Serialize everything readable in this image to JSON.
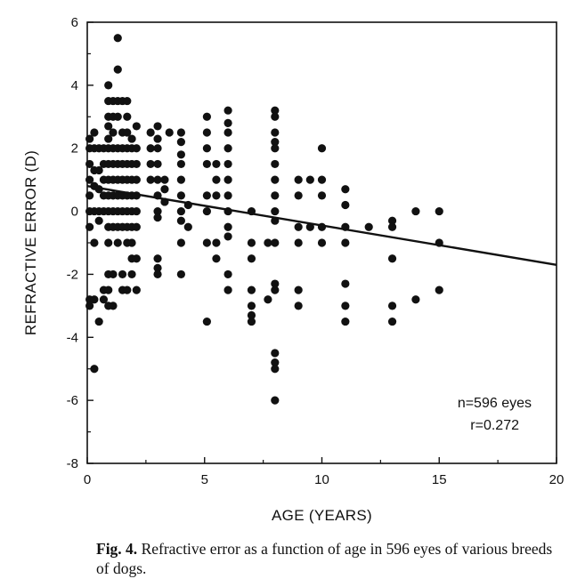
{
  "chart_data": {
    "type": "scatter",
    "xlabel": "AGE (YEARS)",
    "ylabel": "REFRACTIVE ERROR (D)",
    "xlim": [
      0,
      20
    ],
    "ylim": [
      -8,
      6
    ],
    "xticks": [
      0,
      5,
      10,
      15,
      20
    ],
    "yticks": [
      -8,
      -6,
      -4,
      -2,
      0,
      2,
      4,
      6
    ],
    "annotations": [
      "n=596 eyes",
      "r=0.272"
    ],
    "regression_line": {
      "x": [
        0,
        20
      ],
      "y": [
        0.8,
        -1.7
      ]
    },
    "points": [
      [
        0.1,
        2.3
      ],
      [
        0.1,
        2.0
      ],
      [
        0.1,
        1.5
      ],
      [
        0.1,
        1.0
      ],
      [
        0.1,
        0.5
      ],
      [
        0.1,
        0.0
      ],
      [
        0.1,
        -0.5
      ],
      [
        0.1,
        -2.8
      ],
      [
        0.1,
        -3.0
      ],
      [
        0.3,
        2.5
      ],
      [
        0.3,
        2.0
      ],
      [
        0.3,
        1.3
      ],
      [
        0.3,
        0.8
      ],
      [
        0.3,
        0.0
      ],
      [
        0.3,
        -1.0
      ],
      [
        0.3,
        -2.8
      ],
      [
        0.3,
        -5.0
      ],
      [
        0.5,
        2.0
      ],
      [
        0.5,
        1.3
      ],
      [
        0.5,
        0.7
      ],
      [
        0.5,
        0.0
      ],
      [
        0.5,
        -0.3
      ],
      [
        0.5,
        -3.5
      ],
      [
        0.7,
        2.0
      ],
      [
        0.7,
        1.5
      ],
      [
        0.7,
        1.0
      ],
      [
        0.7,
        0.5
      ],
      [
        0.7,
        0.0
      ],
      [
        0.7,
        -2.5
      ],
      [
        0.7,
        -2.8
      ],
      [
        0.9,
        4.0
      ],
      [
        0.9,
        3.5
      ],
      [
        0.9,
        3.0
      ],
      [
        0.9,
        2.7
      ],
      [
        0.9,
        2.3
      ],
      [
        0.9,
        2.0
      ],
      [
        0.9,
        1.5
      ],
      [
        0.9,
        1.0
      ],
      [
        0.9,
        0.5
      ],
      [
        0.9,
        0.0
      ],
      [
        0.9,
        -0.5
      ],
      [
        0.9,
        -1.0
      ],
      [
        0.9,
        -2.0
      ],
      [
        0.9,
        -2.5
      ],
      [
        0.9,
        -3.0
      ],
      [
        1.1,
        3.5
      ],
      [
        1.1,
        3.0
      ],
      [
        1.1,
        2.5
      ],
      [
        1.1,
        2.0
      ],
      [
        1.1,
        1.5
      ],
      [
        1.1,
        1.0
      ],
      [
        1.1,
        0.5
      ],
      [
        1.1,
        0.0
      ],
      [
        1.1,
        -0.5
      ],
      [
        1.1,
        -2.0
      ],
      [
        1.1,
        -3.0
      ],
      [
        1.3,
        5.5
      ],
      [
        1.3,
        4.5
      ],
      [
        1.3,
        3.5
      ],
      [
        1.3,
        3.0
      ],
      [
        1.3,
        2.0
      ],
      [
        1.3,
        1.5
      ],
      [
        1.3,
        1.0
      ],
      [
        1.3,
        0.5
      ],
      [
        1.3,
        0.0
      ],
      [
        1.3,
        -0.5
      ],
      [
        1.3,
        -1.0
      ],
      [
        1.5,
        3.5
      ],
      [
        1.5,
        2.5
      ],
      [
        1.5,
        2.0
      ],
      [
        1.5,
        1.5
      ],
      [
        1.5,
        1.0
      ],
      [
        1.5,
        0.5
      ],
      [
        1.5,
        0.0
      ],
      [
        1.5,
        -0.5
      ],
      [
        1.5,
        -2.0
      ],
      [
        1.5,
        -2.5
      ],
      [
        1.7,
        3.5
      ],
      [
        1.7,
        3.0
      ],
      [
        1.7,
        2.5
      ],
      [
        1.7,
        2.0
      ],
      [
        1.7,
        1.5
      ],
      [
        1.7,
        1.0
      ],
      [
        1.7,
        0.5
      ],
      [
        1.7,
        0.0
      ],
      [
        1.7,
        -0.5
      ],
      [
        1.7,
        -1.0
      ],
      [
        1.7,
        -2.5
      ],
      [
        1.9,
        2.3
      ],
      [
        1.9,
        2.0
      ],
      [
        1.9,
        1.5
      ],
      [
        1.9,
        1.0
      ],
      [
        1.9,
        0.5
      ],
      [
        1.9,
        0.0
      ],
      [
        1.9,
        -0.5
      ],
      [
        1.9,
        -1.0
      ],
      [
        1.9,
        -1.5
      ],
      [
        1.9,
        -2.0
      ],
      [
        2.1,
        2.7
      ],
      [
        2.1,
        2.0
      ],
      [
        2.1,
        1.5
      ],
      [
        2.1,
        1.0
      ],
      [
        2.1,
        0.5
      ],
      [
        2.1,
        0.0
      ],
      [
        2.1,
        -0.5
      ],
      [
        2.1,
        -1.5
      ],
      [
        2.1,
        -2.5
      ],
      [
        2.7,
        2.5
      ],
      [
        2.7,
        2.0
      ],
      [
        2.7,
        1.5
      ],
      [
        2.7,
        1.0
      ],
      [
        3.0,
        2.7
      ],
      [
        3.0,
        2.3
      ],
      [
        3.0,
        2.0
      ],
      [
        3.0,
        1.5
      ],
      [
        3.0,
        1.0
      ],
      [
        3.0,
        0.5
      ],
      [
        3.0,
        0.0
      ],
      [
        3.0,
        -0.2
      ],
      [
        3.0,
        -1.5
      ],
      [
        3.0,
        -1.8
      ],
      [
        3.0,
        -2.0
      ],
      [
        3.3,
        1.0
      ],
      [
        3.3,
        0.7
      ],
      [
        3.3,
        0.3
      ],
      [
        3.5,
        2.5
      ],
      [
        4.0,
        2.5
      ],
      [
        4.0,
        2.2
      ],
      [
        4.0,
        1.8
      ],
      [
        4.0,
        1.5
      ],
      [
        4.0,
        1.0
      ],
      [
        4.0,
        0.5
      ],
      [
        4.0,
        0.0
      ],
      [
        4.0,
        -0.3
      ],
      [
        4.0,
        -1.0
      ],
      [
        4.0,
        -2.0
      ],
      [
        4.3,
        0.2
      ],
      [
        4.3,
        -0.5
      ],
      [
        5.1,
        3.0
      ],
      [
        5.1,
        2.5
      ],
      [
        5.1,
        2.0
      ],
      [
        5.1,
        1.5
      ],
      [
        5.1,
        0.5
      ],
      [
        5.1,
        0.0
      ],
      [
        5.1,
        -1.0
      ],
      [
        5.1,
        -3.5
      ],
      [
        5.5,
        1.5
      ],
      [
        5.5,
        1.0
      ],
      [
        5.5,
        0.5
      ],
      [
        5.5,
        -1.0
      ],
      [
        5.5,
        -1.5
      ],
      [
        6.0,
        3.2
      ],
      [
        6.0,
        2.8
      ],
      [
        6.0,
        2.5
      ],
      [
        6.0,
        2.0
      ],
      [
        6.0,
        1.5
      ],
      [
        6.0,
        1.0
      ],
      [
        6.0,
        0.5
      ],
      [
        6.0,
        0.0
      ],
      [
        6.0,
        -0.5
      ],
      [
        6.0,
        -0.8
      ],
      [
        6.0,
        -2.0
      ],
      [
        6.0,
        -2.5
      ],
      [
        7.0,
        0.0
      ],
      [
        7.0,
        -1.0
      ],
      [
        7.0,
        -1.5
      ],
      [
        7.0,
        -2.5
      ],
      [
        7.0,
        -3.0
      ],
      [
        7.0,
        -3.3
      ],
      [
        7.0,
        -3.5
      ],
      [
        7.7,
        -1.0
      ],
      [
        7.7,
        -2.8
      ],
      [
        8.0,
        3.2
      ],
      [
        8.0,
        3.0
      ],
      [
        8.0,
        2.5
      ],
      [
        8.0,
        2.2
      ],
      [
        8.0,
        2.0
      ],
      [
        8.0,
        1.5
      ],
      [
        8.0,
        1.0
      ],
      [
        8.0,
        0.5
      ],
      [
        8.0,
        0.0
      ],
      [
        8.0,
        -0.3
      ],
      [
        8.0,
        -1.0
      ],
      [
        8.0,
        -2.3
      ],
      [
        8.0,
        -2.5
      ],
      [
        8.0,
        -4.5
      ],
      [
        8.0,
        -4.8
      ],
      [
        8.0,
        -5.0
      ],
      [
        8.0,
        -6.0
      ],
      [
        9.0,
        1.0
      ],
      [
        9.0,
        0.5
      ],
      [
        9.0,
        -0.5
      ],
      [
        9.0,
        -1.0
      ],
      [
        9.0,
        -2.5
      ],
      [
        9.0,
        -3.0
      ],
      [
        9.5,
        1.0
      ],
      [
        9.5,
        -0.5
      ],
      [
        10.0,
        2.0
      ],
      [
        10.0,
        1.0
      ],
      [
        10.0,
        0.5
      ],
      [
        10.0,
        -0.5
      ],
      [
        10.0,
        -1.0
      ],
      [
        11.0,
        0.7
      ],
      [
        11.0,
        0.2
      ],
      [
        11.0,
        -0.5
      ],
      [
        11.0,
        -1.0
      ],
      [
        11.0,
        -2.3
      ],
      [
        11.0,
        -3.0
      ],
      [
        11.0,
        -3.5
      ],
      [
        12.0,
        -0.5
      ],
      [
        13.0,
        -0.3
      ],
      [
        13.0,
        -0.5
      ],
      [
        13.0,
        -1.5
      ],
      [
        13.0,
        -3.0
      ],
      [
        13.0,
        -3.5
      ],
      [
        14.0,
        0.0
      ],
      [
        14.0,
        -2.8
      ],
      [
        15.0,
        0.0
      ],
      [
        15.0,
        -1.0
      ],
      [
        15.0,
        -2.5
      ]
    ]
  },
  "caption": {
    "label": "Fig. 4.",
    "text": " Refractive error as a function of age in 596 eyes of various breeds of dogs."
  }
}
